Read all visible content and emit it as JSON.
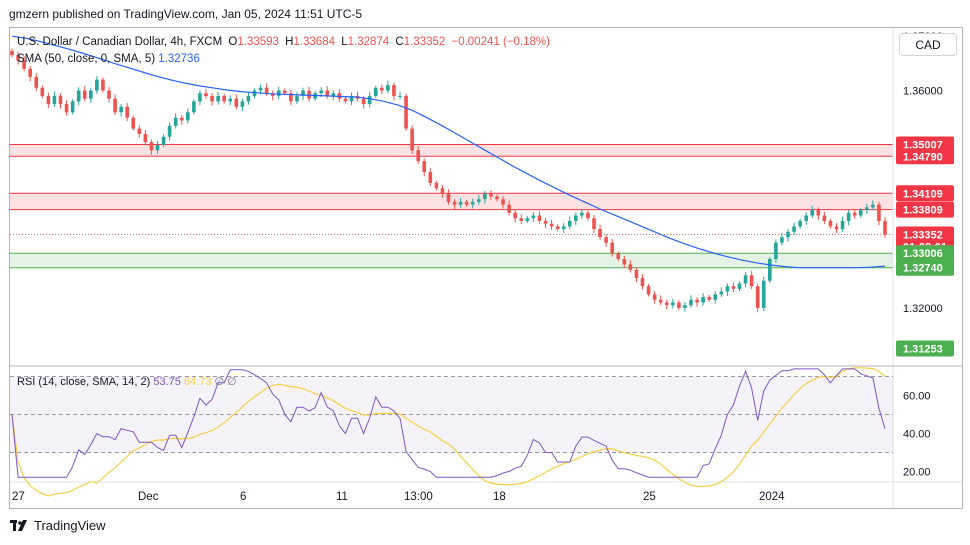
{
  "header": {
    "publisher": "gmzern published on TradingView.com, Jan 05, 2024 11:51 UTC-5"
  },
  "legend": {
    "symbol": "U.S. Dollar / Canadian Dollar, 4h, FXCM",
    "open_label": "O",
    "open": "1.33593",
    "high_label": "H",
    "high": "1.33684",
    "low_label": "L",
    "low": "1.32874",
    "close_label": "C",
    "close": "1.33352",
    "change": "−0.00241 (−0.18%)",
    "sma_label": "SMA (50, close, 0, SMA, 5)",
    "sma_value": "1.32736",
    "rsi_label": "RSI (14, close, SMA, 14, 2)",
    "rsi_value": "53.75",
    "rsi_sma_value": "64.73",
    "rsi_extra": "∅ ∅"
  },
  "currency_button": "CAD",
  "footer": {
    "brand": "TradingView"
  },
  "colors": {
    "up": "#26a69a",
    "down": "#ef5350",
    "sma": "#2962ff",
    "rsi": "#7e57c2",
    "rsi_sma": "#f7d046",
    "zone_red": "#f23645",
    "zone_green": "#4caf50"
  },
  "chart_data": {
    "type": "candlestick",
    "price_axis": {
      "ticks": [
        "1.37000",
        "1.36000",
        "1.32000"
      ],
      "tick_values": [
        1.37,
        1.36,
        1.32
      ],
      "range": [
        1.3095,
        1.3715
      ]
    },
    "time_axis": {
      "labels": [
        "27",
        "Dec",
        "6",
        "11",
        "13:00",
        "18",
        "25",
        "2024"
      ]
    },
    "price_labels": [
      {
        "text": "1.35007",
        "value": 1.35007,
        "color": "#f23645"
      },
      {
        "text": "1.34790",
        "value": 1.3479,
        "color": "#f23645"
      },
      {
        "text": "1.34109",
        "value": 1.34109,
        "color": "#f23645"
      },
      {
        "text": "1.33809",
        "value": 1.33809,
        "color": "#f23645"
      },
      {
        "text": "1.33352",
        "value": 1.33352,
        "color": "#f23645"
      },
      {
        "text": "01:08:01",
        "value": 1.3313,
        "color": "#f23645"
      },
      {
        "text": "1.33006",
        "value": 1.33006,
        "color": "#4caf50"
      },
      {
        "text": "1.32740",
        "value": 1.3274,
        "color": "#4caf50"
      },
      {
        "text": "1.31253",
        "value": 1.31253,
        "color": "#4caf50"
      }
    ],
    "zones": [
      {
        "top": 1.35007,
        "bottom": 1.3479,
        "color": "red"
      },
      {
        "top": 1.34109,
        "bottom": 1.33809,
        "color": "red"
      },
      {
        "top": 1.33006,
        "bottom": 1.3274,
        "color": "green"
      }
    ],
    "close_path": [
      1.3665,
      1.3655,
      1.364,
      1.3625,
      1.3605,
      1.359,
      1.3575,
      1.359,
      1.3575,
      1.356,
      1.358,
      1.36,
      1.3585,
      1.36,
      1.362,
      1.36,
      1.3585,
      1.356,
      1.357,
      1.355,
      1.353,
      1.352,
      1.3505,
      1.349,
      1.35,
      1.3515,
      1.3535,
      1.355,
      1.3545,
      1.356,
      1.358,
      1.3595,
      1.359,
      1.358,
      1.359,
      1.358,
      1.3585,
      1.357,
      1.358,
      1.359,
      1.36,
      1.3605,
      1.3595,
      1.359,
      1.36,
      1.3595,
      1.358,
      1.359,
      1.36,
      1.3585,
      1.3595,
      1.36,
      1.359,
      1.3595,
      1.3585,
      1.358,
      1.359,
      1.3585,
      1.3575,
      1.359,
      1.3605,
      1.36,
      1.361,
      1.359,
      1.359,
      1.353,
      1.349,
      1.347,
      1.345,
      1.343,
      1.342,
      1.341,
      1.3395,
      1.339,
      1.3395,
      1.339,
      1.3395,
      1.34,
      1.341,
      1.3405,
      1.34,
      1.339,
      1.3375,
      1.3365,
      1.336,
      1.3365,
      1.337,
      1.336,
      1.3355,
      1.335,
      1.3345,
      1.335,
      1.336,
      1.337,
      1.3375,
      1.3365,
      1.3345,
      1.333,
      1.332,
      1.33,
      1.329,
      1.328,
      1.327,
      1.3255,
      1.324,
      1.3225,
      1.3215,
      1.321,
      1.3205,
      1.321,
      1.32,
      1.3205,
      1.3215,
      1.321,
      1.322,
      1.3215,
      1.3225,
      1.323,
      1.324,
      1.3235,
      1.3245,
      1.326,
      1.324,
      1.32,
      1.325,
      1.329,
      1.332,
      1.333,
      1.334,
      1.335,
      1.336,
      1.337,
      1.338,
      1.337,
      1.336,
      1.335,
      1.3345,
      1.336,
      1.3375,
      1.337,
      1.338,
      1.3385,
      1.339,
      1.336,
      1.3335
    ],
    "sma_path": [
      1.37,
      1.3696,
      1.369,
      1.3683,
      1.3676,
      1.3668,
      1.366,
      1.3651,
      1.3643,
      1.3635,
      1.3627,
      1.362,
      1.3614,
      1.3609,
      1.3605,
      1.3601,
      1.3598,
      1.3596,
      1.3594,
      1.3593,
      1.3592,
      1.3591,
      1.359,
      1.3589,
      1.3588,
      1.3585,
      1.358,
      1.3573,
      1.3563,
      1.355,
      1.3536,
      1.3521,
      1.3506,
      1.3491,
      1.3476,
      1.3461,
      1.3447,
      1.3433,
      1.342,
      1.3407,
      1.3395,
      1.3383,
      1.3372,
      1.3361,
      1.335,
      1.3339,
      1.3328,
      1.3318,
      1.3309,
      1.3301,
      1.3294,
      1.3288,
      1.3283,
      1.3279,
      1.3276,
      1.3274,
      1.3274,
      1.3274,
      1.3274,
      1.3274,
      1.3275,
      1.3277
    ],
    "rsi": {
      "levels": [
        70,
        50,
        30
      ],
      "ticks": [
        "60.00",
        "40.00",
        "20.00"
      ],
      "tick_values": [
        60,
        40,
        20
      ],
      "range": [
        15,
        75
      ]
    }
  }
}
